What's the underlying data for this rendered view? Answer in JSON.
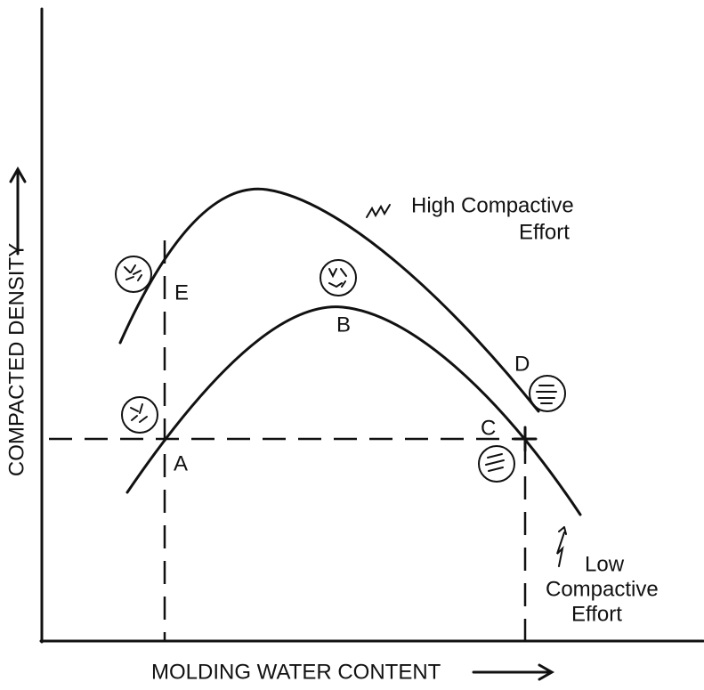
{
  "axes": {
    "y_label": "COMPACTED DENSITY",
    "x_label": "MOLDING WATER CONTENT"
  },
  "curves": [
    {
      "label_lines": [
        "High Compactive",
        "Effort"
      ]
    },
    {
      "label_lines": [
        "Low",
        "Compactive",
        "Effort"
      ]
    }
  ],
  "points": [
    {
      "label": "A"
    },
    {
      "label": "B"
    },
    {
      "label": "C"
    },
    {
      "label": "D"
    },
    {
      "label": "E"
    }
  ]
}
